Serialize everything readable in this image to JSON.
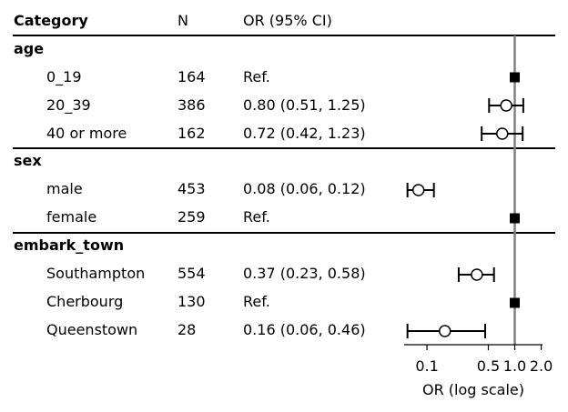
{
  "header": {
    "category": "Category",
    "n": "N",
    "or": "OR (95% CI)"
  },
  "chart_data": {
    "type": "scatter",
    "subtype": "forest-plot",
    "xlabel": "OR (log scale)",
    "xscale": "log",
    "x_ticks": [
      0.1,
      0.5,
      1.0,
      2.0
    ],
    "x_tick_labels": [
      "0.1",
      "0.5",
      "1.0",
      "2.0"
    ],
    "xlim": [
      0.055,
      2.07
    ],
    "reference_line": 1.0,
    "groups": [
      {
        "name": "age",
        "rows": [
          {
            "label": "0_19",
            "n": "164",
            "or_text": "Ref.",
            "ref": true,
            "or": 1.0
          },
          {
            "label": "20_39",
            "n": "386",
            "or_text": "0.80 (0.51, 1.25)",
            "ref": false,
            "or": 0.8,
            "lo": 0.51,
            "hi": 1.25
          },
          {
            "label": "40 or more",
            "n": "162",
            "or_text": "0.72 (0.42, 1.23)",
            "ref": false,
            "or": 0.72,
            "lo": 0.42,
            "hi": 1.23
          }
        ]
      },
      {
        "name": "sex",
        "rows": [
          {
            "label": "male",
            "n": "453",
            "or_text": "0.08 (0.06, 0.12)",
            "ref": false,
            "or": 0.08,
            "lo": 0.06,
            "hi": 0.12
          },
          {
            "label": "female",
            "n": "259",
            "or_text": "Ref.",
            "ref": true,
            "or": 1.0
          }
        ]
      },
      {
        "name": "embark_town",
        "rows": [
          {
            "label": "Southampton",
            "n": "554",
            "or_text": "0.37 (0.23, 0.58)",
            "ref": false,
            "or": 0.37,
            "lo": 0.23,
            "hi": 0.58
          },
          {
            "label": "Cherbourg",
            "n": "130",
            "or_text": "Ref.",
            "ref": true,
            "or": 1.0
          },
          {
            "label": "Queenstown",
            "n": "28",
            "or_text": "0.16 (0.06, 0.46)",
            "ref": false,
            "or": 0.16,
            "lo": 0.06,
            "hi": 0.46
          }
        ]
      }
    ],
    "colors": {
      "reference_line": "#808080",
      "marker": "#000000",
      "marker_fill": "#ffffff"
    }
  }
}
